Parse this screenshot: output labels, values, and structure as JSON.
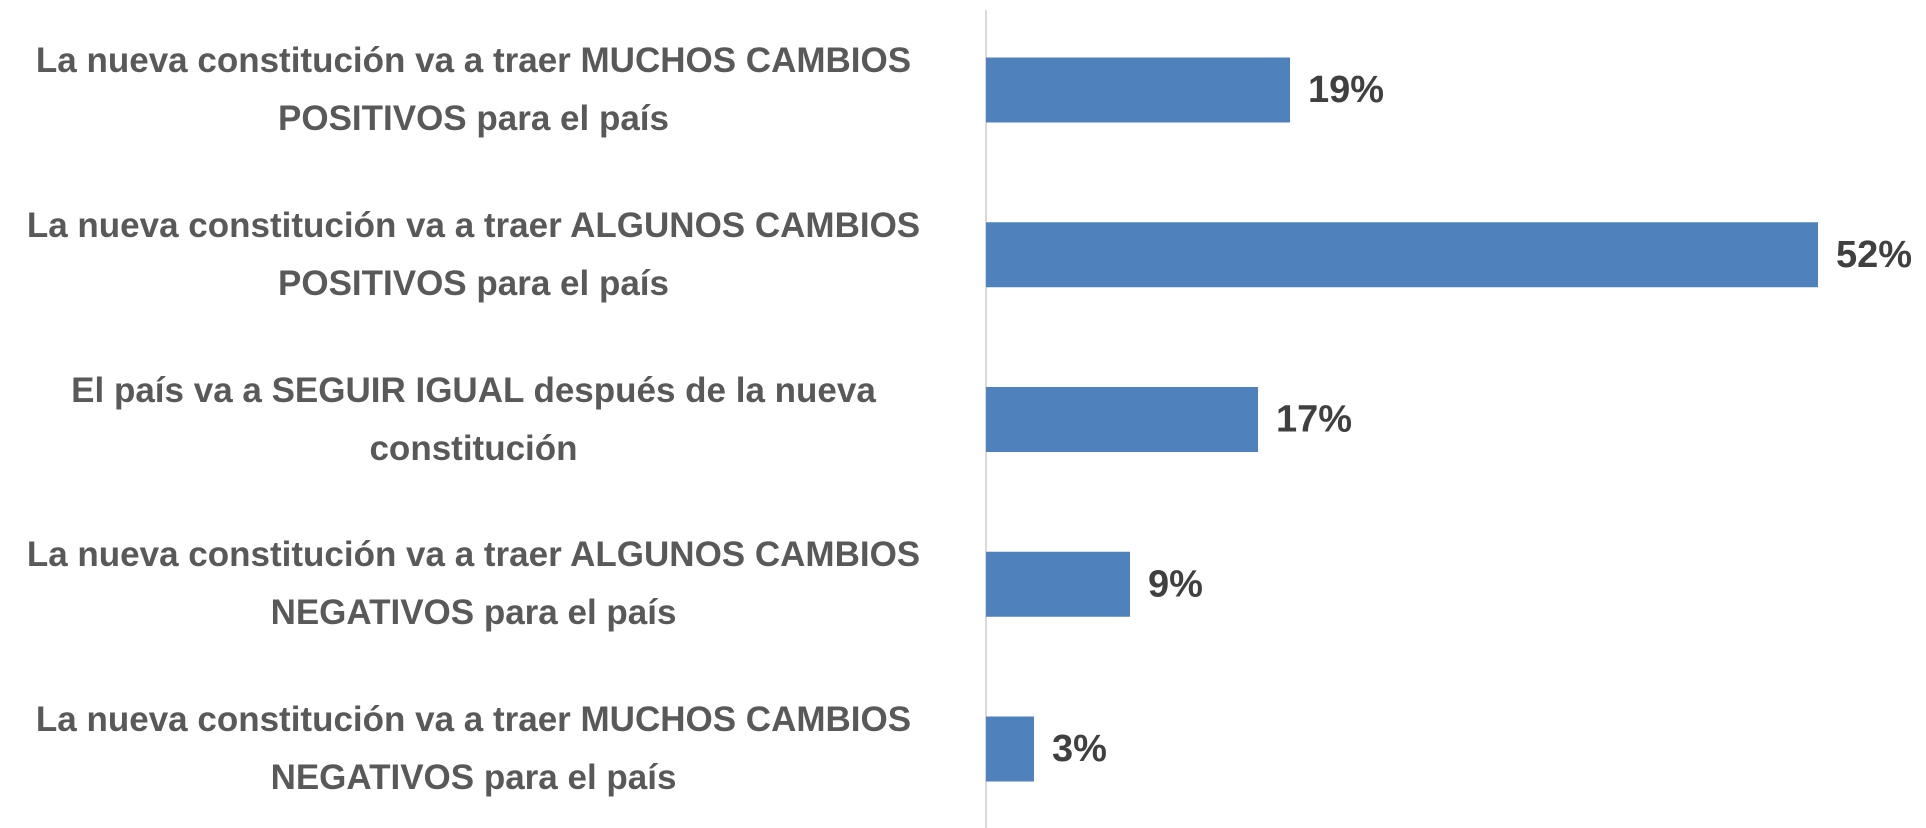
{
  "chart_data": {
    "type": "barh",
    "categories": [
      "La nueva constitución va a traer MUCHOS CAMBIOS POSITIVOS para el país",
      "La nueva constitución va a traer ALGUNOS CAMBIOS POSITIVOS para el país",
      "El país va a SEGUIR IGUAL después de la nueva constitución",
      "La nueva constitución va a traer ALGUNOS CAMBIOS NEGATIVOS para el país",
      "La nueva constitución va a traer MUCHOS CAMBIOS NEGATIVOS para el país"
    ],
    "values": [
      19,
      52,
      17,
      9,
      3
    ],
    "value_labels": [
      "19%",
      "52%",
      "17%",
      "9%",
      "3%"
    ],
    "color": "#4f81bd"
  }
}
